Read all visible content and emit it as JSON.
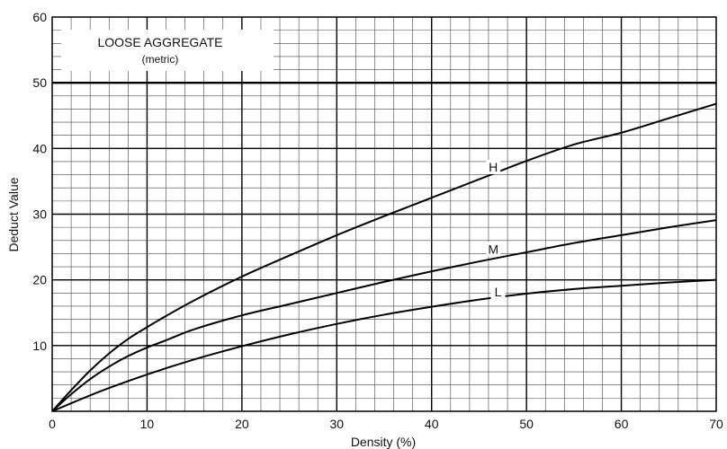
{
  "chart_data": {
    "type": "line",
    "title": "LOOSE AGGREGATE",
    "subtitle": "(metric)",
    "xlabel": "Density (%)",
    "ylabel": "Deduct Value",
    "xlim": [
      0,
      70
    ],
    "ylim": [
      0,
      60
    ],
    "xticks": [
      0,
      10,
      20,
      30,
      40,
      50,
      60,
      70
    ],
    "yticks": [
      10,
      20,
      30,
      40,
      50,
      60
    ],
    "grid": true,
    "legend": "none",
    "series": [
      {
        "name": "H",
        "x": [
          0,
          2,
          4,
          6,
          8,
          10,
          12,
          15,
          20,
          25,
          30,
          35,
          40,
          45,
          50,
          55,
          60,
          65,
          70
        ],
        "values": [
          0,
          3.2,
          6.2,
          8.8,
          11.0,
          12.8,
          14.5,
          16.9,
          20.5,
          23.7,
          26.8,
          29.7,
          32.5,
          35.3,
          38.1,
          40.6,
          42.4,
          44.6,
          46.8
        ]
      },
      {
        "name": "M",
        "x": [
          0,
          2,
          4,
          6,
          8,
          10,
          12,
          15,
          20,
          25,
          30,
          35,
          40,
          45,
          50,
          55,
          60,
          65,
          70
        ],
        "values": [
          0,
          2.6,
          4.9,
          6.8,
          8.4,
          9.7,
          10.8,
          12.5,
          14.6,
          16.3,
          18.0,
          19.7,
          21.3,
          22.8,
          24.2,
          25.6,
          26.8,
          28.0,
          29.1
        ]
      },
      {
        "name": "L",
        "x": [
          0,
          5,
          10,
          15,
          20,
          25,
          30,
          35,
          40,
          45,
          50,
          55,
          60,
          65,
          70
        ],
        "values": [
          0,
          3.0,
          5.6,
          7.9,
          9.9,
          11.7,
          13.3,
          14.7,
          15.9,
          17.0,
          17.9,
          18.6,
          19.1,
          19.6,
          20.0
        ]
      }
    ]
  }
}
